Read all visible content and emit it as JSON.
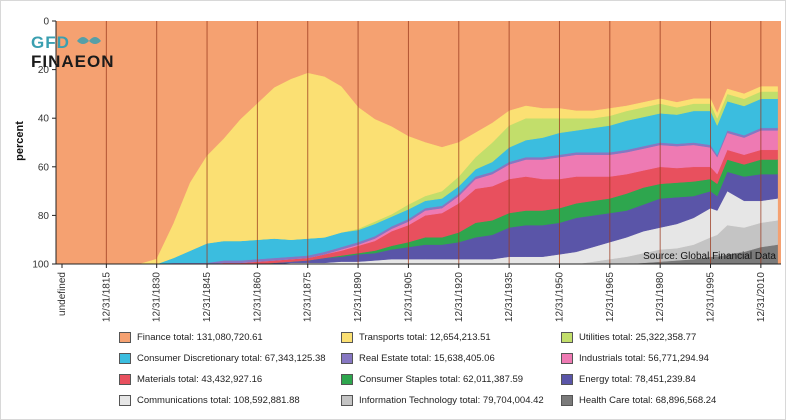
{
  "chart_data": {
    "type": "area",
    "stacked": true,
    "ylabel": "percent",
    "y_inverted": true,
    "ylim": [
      0,
      100
    ],
    "yticks": [
      0,
      20,
      40,
      60,
      80,
      100
    ],
    "xticks": [
      "undefined",
      "12/31/1815",
      "12/31/1830",
      "12/31/1845",
      "12/31/1860",
      "12/31/1875",
      "12/31/1890",
      "12/31/1905",
      "12/31/1920",
      "12/31/1935",
      "12/31/1950",
      "12/31/1965",
      "12/31/1980",
      "12/31/1995",
      "12/31/2010"
    ],
    "source": "Source: Global Financial Data",
    "logo": "GFD FINAEON",
    "x": [
      1800,
      1805,
      1810,
      1815,
      1820,
      1825,
      1830,
      1835,
      1840,
      1845,
      1850,
      1855,
      1860,
      1865,
      1870,
      1875,
      1880,
      1885,
      1890,
      1895,
      1900,
      1905,
      1910,
      1915,
      1920,
      1925,
      1930,
      1935,
      1940,
      1945,
      1950,
      1955,
      1960,
      1965,
      1970,
      1975,
      1980,
      1985,
      1990,
      1995,
      1997,
      2000,
      2005,
      2010,
      2015
    ],
    "series": [
      {
        "name": "Health Care",
        "color": "#7a7a7a",
        "values": [
          0,
          0,
          0,
          0,
          0,
          0,
          0,
          0,
          0,
          0,
          0,
          0,
          0,
          0,
          0,
          0,
          0,
          0,
          0,
          0,
          0,
          0,
          0,
          0,
          0,
          0,
          0,
          0,
          0,
          0,
          0,
          0,
          0,
          0,
          0,
          0.5,
          1,
          1.5,
          2,
          3,
          3,
          4,
          5,
          7,
          8
        ]
      },
      {
        "name": "Information Technology",
        "color": "#c4c4c4",
        "values": [
          0,
          0,
          0,
          0,
          0,
          0,
          0,
          0,
          0,
          0,
          0,
          0,
          0,
          0,
          0,
          0,
          0,
          0,
          0,
          0,
          0,
          0,
          0,
          0,
          0,
          0,
          0,
          0,
          0,
          0,
          0,
          0,
          1,
          2,
          3,
          4,
          5,
          5,
          6,
          8,
          9,
          12,
          10,
          10,
          10
        ]
      },
      {
        "name": "Communications",
        "color": "#e6e6e6",
        "values": [
          0,
          0,
          0,
          0,
          0,
          0,
          0,
          0,
          0,
          0,
          0,
          0,
          0,
          0,
          0.5,
          0.5,
          0.5,
          1,
          1,
          1.5,
          2,
          2,
          2,
          2,
          2,
          2,
          2,
          3,
          3,
          3,
          4,
          5,
          6,
          7,
          8,
          9,
          9,
          10,
          11,
          12,
          10,
          14,
          11,
          9,
          9
        ]
      },
      {
        "name": "Energy",
        "color": "#5a55a8",
        "values": [
          0,
          0,
          0,
          0,
          0,
          0,
          0,
          0,
          0,
          0,
          0,
          0,
          0,
          0.5,
          0.5,
          1,
          2,
          2,
          3,
          3,
          4,
          5,
          6,
          6,
          7,
          9,
          10,
          12,
          13,
          13,
          13,
          14,
          13,
          12,
          11,
          11,
          12,
          11,
          9,
          7,
          6,
          8,
          10,
          11,
          10
        ]
      },
      {
        "name": "Consumer Staples",
        "color": "#2ea64e",
        "values": [
          0,
          0,
          0,
          0,
          0,
          0,
          0,
          0,
          0,
          0,
          0,
          0,
          0,
          0,
          0,
          0,
          0,
          0.5,
          0.5,
          1,
          1.5,
          2,
          3,
          3,
          4,
          6,
          6,
          6,
          6,
          6,
          6,
          6,
          6,
          6,
          7,
          7,
          6,
          6,
          6,
          5,
          5,
          5,
          5,
          6,
          6
        ]
      },
      {
        "name": "Materials",
        "color": "#e8505e",
        "values": [
          0,
          0,
          0,
          0,
          0,
          0,
          0,
          0,
          0,
          0,
          0.5,
          0.5,
          1,
          1,
          1,
          1,
          1.5,
          2,
          3,
          4,
          6,
          7,
          9,
          10,
          12,
          14,
          14,
          14,
          14,
          13,
          12,
          11,
          10,
          9,
          8,
          7,
          7,
          6,
          6,
          5,
          4,
          4,
          4,
          4,
          4
        ]
      },
      {
        "name": "Industrials",
        "color": "#ee7ab3",
        "values": [
          0,
          0,
          0,
          0,
          0,
          0,
          0,
          0,
          0,
          0,
          0,
          0,
          0,
          0,
          0,
          0,
          0,
          0.5,
          0.5,
          1,
          1,
          1.5,
          2,
          2,
          3,
          4,
          5,
          6,
          7,
          8,
          9,
          9,
          9,
          9,
          9,
          9,
          9,
          9,
          9,
          8,
          7,
          7,
          7,
          8,
          8
        ]
      },
      {
        "name": "Real Estate",
        "color": "#8677c2",
        "values": [
          0,
          0,
          0,
          0,
          0,
          0,
          0,
          0.5,
          0.5,
          0.5,
          1,
          1,
          1,
          1,
          1,
          1,
          1,
          1,
          1,
          1,
          1,
          1,
          1,
          1,
          1,
          1,
          1,
          1,
          1,
          1,
          1,
          1,
          1,
          1,
          1,
          1,
          1,
          1,
          1,
          1,
          1,
          1,
          1,
          1,
          1
        ]
      },
      {
        "name": "Consumer Discretionary",
        "color": "#3bbddf",
        "values": [
          0,
          0,
          0,
          0,
          0,
          0,
          0,
          2,
          5,
          8,
          8,
          8,
          8,
          8,
          7,
          7,
          6,
          6,
          5,
          5,
          4,
          4,
          3,
          3,
          3,
          3,
          4,
          6,
          7,
          8,
          9,
          9,
          10,
          11,
          12,
          12,
          12,
          12,
          13,
          14,
          12,
          12,
          12,
          12,
          12
        ]
      },
      {
        "name": "Utilities",
        "color": "#c2de6b",
        "values": [
          0,
          0,
          0,
          0,
          0,
          0,
          0,
          0,
          0,
          0,
          0,
          0,
          0,
          0,
          0,
          0,
          0,
          0,
          0.5,
          1,
          1,
          2,
          2,
          3,
          4,
          5,
          8,
          9,
          9,
          8,
          6,
          5,
          4,
          4,
          4,
          4,
          4,
          3,
          3,
          3,
          3,
          3,
          3,
          3,
          3
        ]
      },
      {
        "name": "Transports",
        "color": "#fbe073",
        "values": [
          0,
          0,
          0,
          0,
          0,
          0,
          2,
          14,
          28,
          36,
          42,
          50,
          56,
          62,
          66,
          68,
          66,
          60,
          50,
          42,
          36,
          28,
          22,
          18,
          14,
          10,
          8,
          6,
          5,
          4,
          4,
          3,
          3,
          3,
          2,
          2,
          2,
          2,
          2,
          2,
          2,
          2,
          2,
          2,
          2
        ]
      }
    ],
    "remainder": {
      "name": "Finance",
      "color": "#f5a171"
    },
    "legend_placement": "bottom",
    "legend": [
      {
        "label": "Finance total: 131,080,720.61",
        "color": "#f5a171"
      },
      {
        "label": "Transports total: 12,654,213.51",
        "color": "#fbe073"
      },
      {
        "label": "Utilities total: 25,322,358.77",
        "color": "#c2de6b"
      },
      {
        "label": "Consumer Discretionary total: 67,343,125.38",
        "color": "#3bbddf"
      },
      {
        "label": "Real Estate total: 15,638,405.06",
        "color": "#8677c2"
      },
      {
        "label": "Industrials total: 56,771,294.94",
        "color": "#ee7ab3"
      },
      {
        "label": "Materials total: 43,432,927.16",
        "color": "#e8505e"
      },
      {
        "label": "Consumer Staples total: 62,011,387.59",
        "color": "#2ea64e"
      },
      {
        "label": "Energy total: 78,451,239.84",
        "color": "#5a55a8"
      },
      {
        "label": "Communications total: 108,592,881.88",
        "color": "#e6e6e6"
      },
      {
        "label": "Information Technology total: 79,704,004.42",
        "color": "#c4c4c4"
      },
      {
        "label": "Health Care total: 68,896,568.24",
        "color": "#7a7a7a"
      }
    ]
  }
}
